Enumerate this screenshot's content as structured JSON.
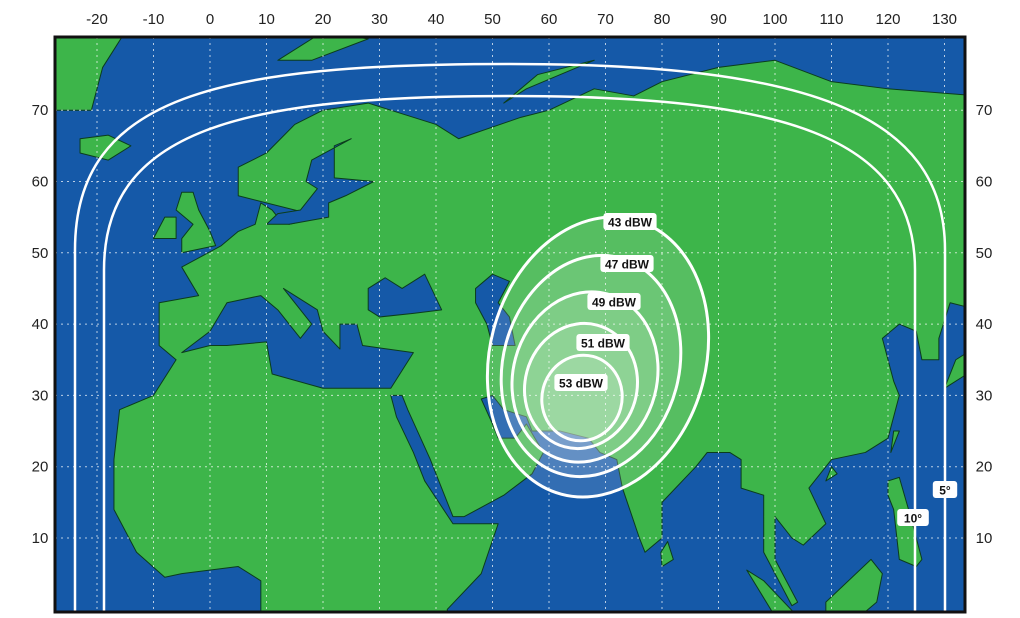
{
  "map": {
    "longitude_ticks": [
      -20,
      -10,
      0,
      10,
      20,
      30,
      40,
      50,
      60,
      70,
      80,
      90,
      100,
      110,
      120,
      130
    ],
    "latitude_ticks": [
      10,
      20,
      30,
      40,
      50,
      60,
      70
    ],
    "colors": {
      "sea": "#1559a8",
      "land": "#3db54a",
      "contour": "#ffffff",
      "border": "#0b3d1c"
    },
    "contours": [
      {
        "label": "43 dBW"
      },
      {
        "label": "47 dBW"
      },
      {
        "label": "49 dBW"
      },
      {
        "label": "51 dBW"
      },
      {
        "label": "53 dBW"
      }
    ],
    "elevation_lines": [
      {
        "label": "5°"
      },
      {
        "label": "10°"
      }
    ]
  }
}
